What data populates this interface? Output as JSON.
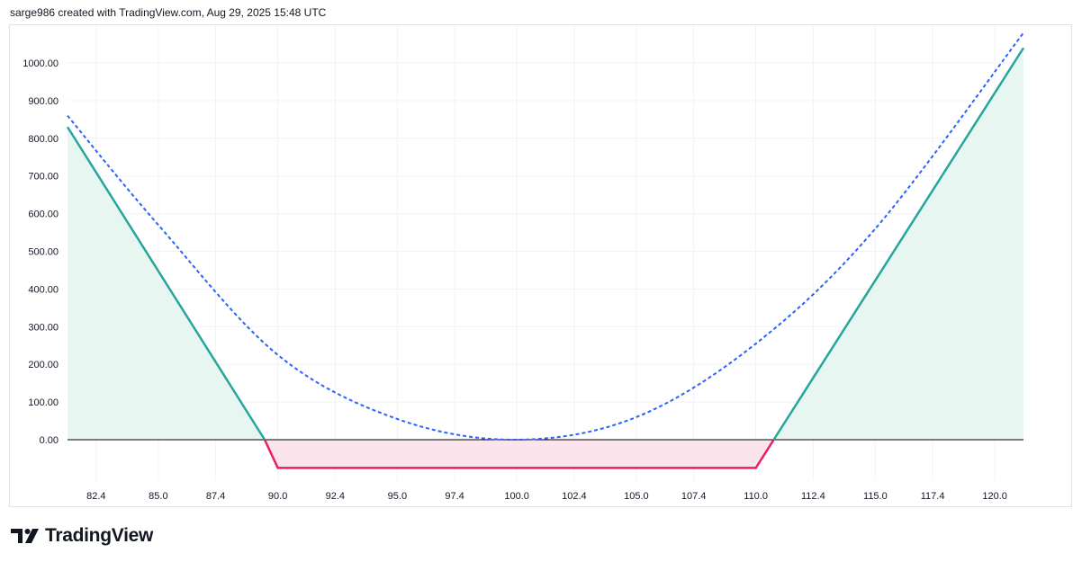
{
  "attribution": "sarge986 created with TradingView.com, Aug 29, 2025 15:48 UTC",
  "brand": {
    "name": "TradingView",
    "logo_icon": "tradingview-logo-icon"
  },
  "colors": {
    "profit_line": "#26a69a",
    "profit_fill": "#e8f6f2",
    "loss_line": "#e91e63",
    "loss_fill": "#fce4ec",
    "theoretical_line": "#2962ff",
    "zero_line": "#000000",
    "grid": "#f0f3fa",
    "text": "#131722"
  },
  "chart_data": {
    "type": "line",
    "title": "",
    "xlabel": "",
    "ylabel": "",
    "xlim": [
      81.2,
      121.2
    ],
    "ylim": [
      -75,
      1080
    ],
    "grid": true,
    "x_ticks": [
      "82.4",
      "85.0",
      "87.4",
      "90.0",
      "92.4",
      "95.0",
      "97.4",
      "100.0",
      "102.4",
      "105.0",
      "107.4",
      "110.0",
      "112.4",
      "115.0",
      "117.4",
      "120.0"
    ],
    "y_ticks": [
      "0.00",
      "100.00",
      "200.00",
      "300.00",
      "400.00",
      "500.00",
      "600.00",
      "700.00",
      "800.00",
      "900.00",
      "1000.00"
    ],
    "series": [
      {
        "style": "solid",
        "points": [
          {
            "x": 81.2,
            "y": 830
          },
          {
            "x": 89.45,
            "y": 0
          },
          {
            "x": 90.0,
            "y": -75
          },
          {
            "x": 110.0,
            "y": -75
          },
          {
            "x": 110.75,
            "y": 0
          },
          {
            "x": 121.2,
            "y": 1040
          }
        ]
      },
      {
        "style": "dotted",
        "points": [
          {
            "x": 81.2,
            "y": 860
          },
          {
            "x": 85.0,
            "y": 570
          },
          {
            "x": 90.0,
            "y": 225
          },
          {
            "x": 95.0,
            "y": 55
          },
          {
            "x": 100.0,
            "y": 0
          },
          {
            "x": 105.0,
            "y": 60
          },
          {
            "x": 110.0,
            "y": 255
          },
          {
            "x": 115.0,
            "y": 560
          },
          {
            "x": 121.2,
            "y": 1080
          }
        ]
      }
    ]
  }
}
